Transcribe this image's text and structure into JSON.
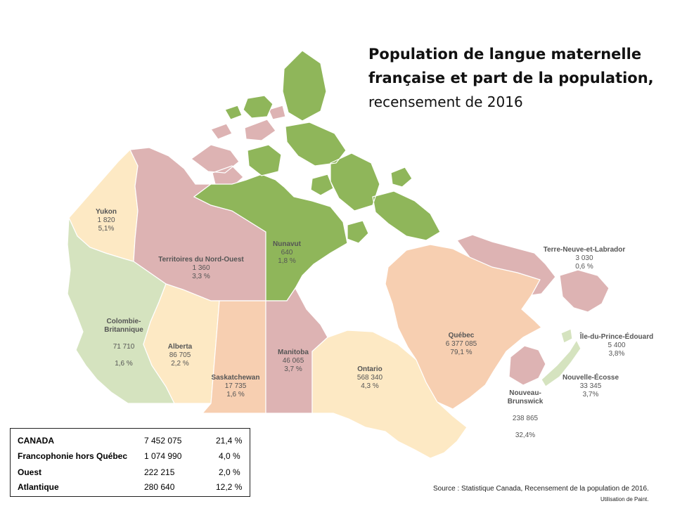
{
  "title": {
    "line1": "Population de langue maternelle",
    "line2": "française et part de la population,",
    "line3": "recensement de 2016"
  },
  "colors": {
    "nunavut": "#8fb65a",
    "pink": "#ddb3b3",
    "yellow": "#fde9c4",
    "peach": "#f7cfb1",
    "green_light": "#d5e3bf",
    "water": "#ffffff"
  },
  "regions": [
    {
      "name": "Yukon",
      "population": "1 820",
      "share": "5,1%"
    },
    {
      "name": "Territoires du Nord-Ouest",
      "population": "1 360",
      "share": "3,3 %"
    },
    {
      "name": "Nunavut",
      "population": "640",
      "share": "1,8 %"
    },
    {
      "name": "Colombie-\nBritannique",
      "population": "71 710",
      "share": "1,6 %"
    },
    {
      "name": "Alberta",
      "population": "86 705",
      "share": "2,2 %"
    },
    {
      "name": "Saskatchewan",
      "population": "17 735",
      "share": "1,6 %"
    },
    {
      "name": "Manitoba",
      "population": "46 065",
      "share": "3,7 %"
    },
    {
      "name": "Ontario",
      "population": "568 340",
      "share": "4,3 %"
    },
    {
      "name": "Québec",
      "population": "6 377 085",
      "share": "79,1 %"
    },
    {
      "name": "Terre-Neuve-et-Labrador",
      "population": "3 030",
      "share": "0,6 %"
    },
    {
      "name": "Île-du-Prince-Édouard",
      "population": "5 400",
      "share": "3,8%"
    },
    {
      "name": "Nouvelle-Écosse",
      "population": "33 345",
      "share": "3,7%"
    },
    {
      "name": "Nouveau-\nBrunswick",
      "population": "238 865",
      "share": "32,4%"
    }
  ],
  "summary": [
    {
      "label": "CANADA",
      "population": "7 452 075",
      "share": "21,4 %"
    },
    {
      "label": "Francophonie hors Québec",
      "population": "1 074 990",
      "share": "4,0 %"
    },
    {
      "label": "Ouest",
      "population": "222 215",
      "share": "2,0 %"
    },
    {
      "label": "Atlantique",
      "population": "280 640",
      "share": "12,2 %"
    }
  ],
  "source": "Source : Statistique Canada, Recensement de la population de 2016.",
  "credit": "Utilisation de Paint."
}
